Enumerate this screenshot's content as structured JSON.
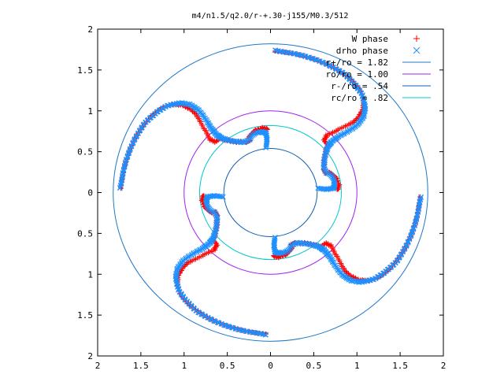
{
  "chart_data": {
    "type": "scatter",
    "title": "m4/n1.5/q2.0/r-+.30-j155/M0.3/512",
    "xlim": [
      -2,
      2
    ],
    "ylim": [
      -2,
      2
    ],
    "x_ticks": [
      -2,
      -1.5,
      -1,
      -0.5,
      0,
      0.5,
      1,
      1.5,
      2
    ],
    "y_ticks": [
      -2,
      -1.5,
      -1,
      -0.5,
      0,
      0.5,
      1,
      1.5,
      2
    ],
    "x_tick_labels": [
      "2",
      "1.5",
      "1",
      "0.5",
      "0",
      "0.5",
      "1",
      "1.5",
      "2"
    ],
    "y_tick_labels": [
      "2",
      "1.5",
      "1",
      "0.5",
      "0",
      "0.5",
      "1",
      "1.5",
      "2"
    ],
    "grid": false,
    "legend_position": "top-right",
    "series": [
      {
        "name": "W phase",
        "marker": "plus",
        "color": "#ff0000",
        "points_one_arm": [
          [
            -0.03,
            0.78
          ],
          [
            -0.1,
            0.79
          ],
          [
            -0.18,
            0.76
          ],
          [
            -0.22,
            0.72
          ],
          [
            -0.25,
            0.68
          ],
          [
            -0.24,
            0.63
          ],
          [
            -0.3,
            0.62
          ],
          [
            -0.4,
            0.62
          ],
          [
            -0.5,
            0.64
          ],
          [
            -0.58,
            0.66
          ],
          [
            -0.64,
            0.62
          ],
          [
            -0.7,
            0.65
          ],
          [
            -0.75,
            0.75
          ],
          [
            -0.81,
            0.86
          ],
          [
            -0.86,
            0.96
          ],
          [
            -0.94,
            1.03
          ],
          [
            -1.02,
            1.07
          ],
          [
            -1.1,
            1.08
          ],
          [
            -1.2,
            1.06
          ],
          [
            -1.3,
            1.0
          ],
          [
            -1.38,
            0.93
          ],
          [
            -1.45,
            0.85
          ],
          [
            -1.52,
            0.75
          ],
          [
            -1.58,
            0.64
          ],
          [
            -1.63,
            0.52
          ],
          [
            -1.67,
            0.4
          ],
          [
            -1.7,
            0.28
          ],
          [
            -1.72,
            0.16
          ],
          [
            -1.73,
            0.05
          ]
        ]
      },
      {
        "name": "drho phase",
        "marker": "cross",
        "color": "#1e90ff",
        "points_one_arm": [
          [
            -0.05,
            0.55
          ],
          [
            -0.04,
            0.64
          ],
          [
            -0.05,
            0.72
          ],
          [
            -0.1,
            0.74
          ],
          [
            -0.18,
            0.72
          ],
          [
            -0.22,
            0.69
          ],
          [
            -0.24,
            0.64
          ],
          [
            -0.31,
            0.61
          ],
          [
            -0.41,
            0.62
          ],
          [
            -0.51,
            0.64
          ],
          [
            -0.58,
            0.67
          ],
          [
            -0.62,
            0.7
          ],
          [
            -0.67,
            0.76
          ],
          [
            -0.72,
            0.84
          ],
          [
            -0.78,
            0.94
          ],
          [
            -0.85,
            1.02
          ],
          [
            -0.93,
            1.07
          ],
          [
            -1.02,
            1.09
          ],
          [
            -1.11,
            1.08
          ],
          [
            -1.21,
            1.05
          ],
          [
            -1.3,
            0.99
          ],
          [
            -1.38,
            0.92
          ],
          [
            -1.46,
            0.84
          ],
          [
            -1.52,
            0.74
          ],
          [
            -1.58,
            0.63
          ],
          [
            -1.63,
            0.51
          ],
          [
            -1.67,
            0.39
          ],
          [
            -1.7,
            0.27
          ],
          [
            -1.72,
            0.15
          ],
          [
            -1.74,
            0.05
          ]
        ]
      }
    ],
    "symmetry": "four-fold rotational; each arm is rotated by 90 degrees",
    "circles": [
      {
        "label": "r+/ro = 1.82",
        "radius": 1.82,
        "color": "#1f78c8"
      },
      {
        "label": "ro/ro = 1.00",
        "radius": 1.0,
        "color": "#a020f0"
      },
      {
        "label": "r-/ro = .54",
        "radius": 0.54,
        "color": "#1060b0"
      },
      {
        "label": "rc/ro = .82",
        "radius": 0.82,
        "color": "#00c8d0"
      }
    ]
  }
}
